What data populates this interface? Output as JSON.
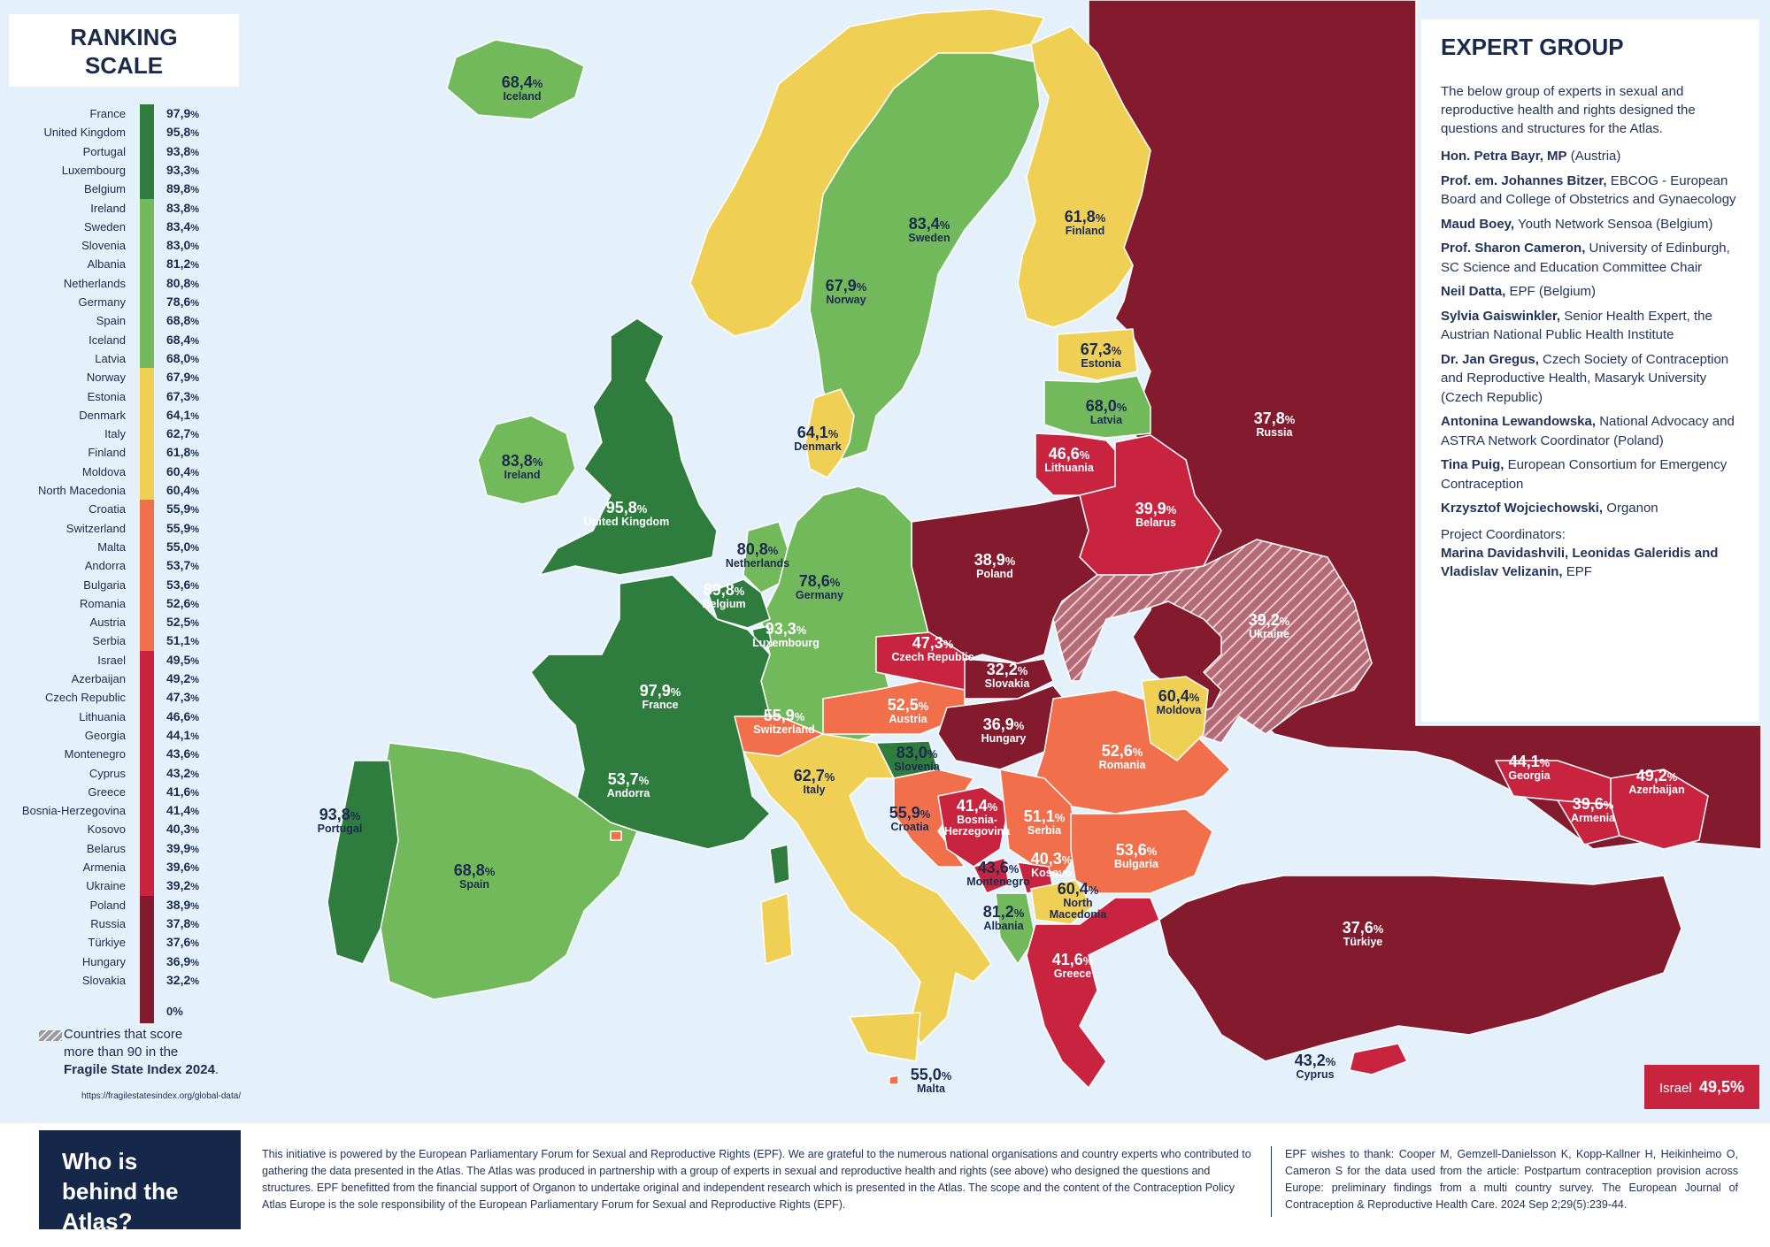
{
  "scale": {
    "title_line1": "RANKING",
    "title_line2": "SCALE",
    "zero_label": "0%",
    "entries": [
      {
        "country": "France",
        "value": "97,9"
      },
      {
        "country": "United Kingdom",
        "value": "95,8"
      },
      {
        "country": "Portugal",
        "value": "93,8"
      },
      {
        "country": "Luxembourg",
        "value": "93,3"
      },
      {
        "country": "Belgium",
        "value": "89,8"
      },
      {
        "country": "Ireland",
        "value": "83,8"
      },
      {
        "country": "Sweden",
        "value": "83,4"
      },
      {
        "country": "Slovenia",
        "value": "83,0"
      },
      {
        "country": "Albania",
        "value": "81,2"
      },
      {
        "country": "Netherlands",
        "value": "80,8"
      },
      {
        "country": "Germany",
        "value": "78,6"
      },
      {
        "country": "Spain",
        "value": "68,8"
      },
      {
        "country": "Iceland",
        "value": "68,4"
      },
      {
        "country": "Latvia",
        "value": "68,0"
      },
      {
        "country": "Norway",
        "value": "67,9"
      },
      {
        "country": "Estonia",
        "value": "67,3"
      },
      {
        "country": "Denmark",
        "value": "64,1"
      },
      {
        "country": "Italy",
        "value": "62,7"
      },
      {
        "country": "Finland",
        "value": "61,8"
      },
      {
        "country": "Moldova",
        "value": "60,4"
      },
      {
        "country": "North Macedonia",
        "value": "60,4"
      },
      {
        "country": "Croatia",
        "value": "55,9"
      },
      {
        "country": "Switzerland",
        "value": "55,9"
      },
      {
        "country": "Malta",
        "value": "55,0"
      },
      {
        "country": "Andorra",
        "value": "53,7"
      },
      {
        "country": "Bulgaria",
        "value": "53,6"
      },
      {
        "country": "Romania",
        "value": "52,6"
      },
      {
        "country": "Austria",
        "value": "52,5"
      },
      {
        "country": "Serbia",
        "value": "51,1"
      },
      {
        "country": "Israel",
        "value": "49,5"
      },
      {
        "country": "Azerbaijan",
        "value": "49,2"
      },
      {
        "country": "Czech Republic",
        "value": "47,3"
      },
      {
        "country": "Lithuania",
        "value": "46,6"
      },
      {
        "country": "Georgia",
        "value": "44,1"
      },
      {
        "country": "Montenegro",
        "value": "43,6"
      },
      {
        "country": "Cyprus",
        "value": "43,2"
      },
      {
        "country": "Greece",
        "value": "41,6"
      },
      {
        "country": "Bosnia-Herzegovina",
        "value": "41,4"
      },
      {
        "country": "Kosovo",
        "value": "40,3"
      },
      {
        "country": "Belarus",
        "value": "39,9"
      },
      {
        "country": "Armenia",
        "value": "39,6"
      },
      {
        "country": "Ukraine",
        "value": "39,2"
      },
      {
        "country": "Poland",
        "value": "38,9"
      },
      {
        "country": "Russia",
        "value": "37,8"
      },
      {
        "country": "Türkiye",
        "value": "37,6"
      },
      {
        "country": "Hungary",
        "value": "36,9"
      },
      {
        "country": "Slovakia",
        "value": "32,2"
      }
    ],
    "colors": {
      "dark_green": "#2e7d3e",
      "light_green": "#72b95c",
      "yellow": "#f0cf55",
      "orange": "#f1704b",
      "red": "#c8243f",
      "dark_red": "#841a2e"
    }
  },
  "legend": {
    "line1": "Countries that score",
    "line2": "more than 90 in the",
    "line3_bold": "Fragile State Index 2024",
    "line3_end": ".",
    "url": "https://fragilestatesindex.org/global-data/"
  },
  "map_labels": {
    "iceland": {
      "value": "68,4",
      "name": "Iceland"
    },
    "ireland": {
      "value": "83,8",
      "name": "Ireland"
    },
    "uk": {
      "value": "95,8",
      "name": "United Kingdom"
    },
    "portugal": {
      "value": "93,8",
      "name": "Portugal"
    },
    "spain": {
      "value": "68,8",
      "name": "Spain"
    },
    "andorra": {
      "value": "53,7",
      "name": "Andorra"
    },
    "france": {
      "value": "97,9",
      "name": "France"
    },
    "belgium": {
      "value": "89,8",
      "name": "Belgium"
    },
    "netherlands": {
      "value": "80,8",
      "name": "Netherlands"
    },
    "luxembourg": {
      "value": "93,3",
      "name": "Luxembourg"
    },
    "germany": {
      "value": "78,6",
      "name": "Germany"
    },
    "switzerland": {
      "value": "55,9",
      "name": "Switzerland"
    },
    "italy": {
      "value": "62,7",
      "name": "Italy"
    },
    "malta": {
      "value": "55,0",
      "name": "Malta"
    },
    "norway": {
      "value": "67,9",
      "name": "Norway"
    },
    "sweden": {
      "value": "83,4",
      "name": "Sweden"
    },
    "finland": {
      "value": "61,8",
      "name": "Finland"
    },
    "denmark": {
      "value": "64,1",
      "name": "Denmark"
    },
    "estonia": {
      "value": "67,3",
      "name": "Estonia"
    },
    "latvia": {
      "value": "68,0",
      "name": "Latvia"
    },
    "lithuania": {
      "value": "46,6",
      "name": "Lithuania"
    },
    "belarus": {
      "value": "39,9",
      "name": "Belarus"
    },
    "poland": {
      "value": "38,9",
      "name": "Poland"
    },
    "czech": {
      "value": "47,3",
      "name": "Czech Republic"
    },
    "slovakia": {
      "value": "32,2",
      "name": "Slovakia"
    },
    "austria": {
      "value": "52,5",
      "name": "Austria"
    },
    "hungary": {
      "value": "36,9",
      "name": "Hungary"
    },
    "slovenia": {
      "value": "83,0",
      "name": "Slovenia"
    },
    "croatia": {
      "value": "55,9",
      "name": "Croatia"
    },
    "bosnia": {
      "value": "41,4",
      "name_line1": "Bosnia-",
      "name_line2": "Herzegovina"
    },
    "serbia": {
      "value": "51,1",
      "name": "Serbia"
    },
    "montenegro": {
      "value": "43,6",
      "name": "Montenegro"
    },
    "kosovo": {
      "value": "40,3",
      "name": "Kosovo"
    },
    "albania": {
      "value": "81,2",
      "name": "Albania"
    },
    "north_macedonia": {
      "value": "60,4",
      "name_line1": "North",
      "name_line2": "Macedonia"
    },
    "greece": {
      "value": "41,6",
      "name": "Greece"
    },
    "bulgaria": {
      "value": "53,6",
      "name": "Bulgaria"
    },
    "romania": {
      "value": "52,6",
      "name": "Romania"
    },
    "moldova": {
      "value": "60,4",
      "name": "Moldova"
    },
    "ukraine": {
      "value": "39,2",
      "name": "Ukraine"
    },
    "russia": {
      "value": "37,8",
      "name": "Russia"
    },
    "turkiye": {
      "value": "37,6",
      "name": "Türkiye"
    },
    "cyprus": {
      "value": "43,2",
      "name": "Cyprus"
    },
    "georgia": {
      "value": "44,1",
      "name": "Georgia"
    },
    "armenia": {
      "value": "39,6",
      "name": "Armenia"
    },
    "azerbaijan": {
      "value": "49,2",
      "name": "Azerbaijan"
    },
    "pct_sign": "%"
  },
  "israel_box": {
    "name": "Israel",
    "value": "49,5%"
  },
  "expert_group": {
    "title": "EXPERT GROUP",
    "intro": "The below group of experts in sexual and reproductive health and rights designed the questions and structures for the Atlas.",
    "members": [
      {
        "name": "Hon. Petra Bayr, MP",
        "detail": " (Austria)"
      },
      {
        "name": "Prof. em. Johannes Bitzer,",
        "detail": " EBCOG - European Board and College of Obstetrics and Gynaecology"
      },
      {
        "name": "Maud Boey,",
        "detail": " Youth Network Sensoa (Belgium)"
      },
      {
        "name": "Prof. Sharon Cameron,",
        "detail": " University of Edinburgh, SC Science and Education Committee Chair"
      },
      {
        "name": "Neil Datta,",
        "detail": " EPF (Belgium)"
      },
      {
        "name": "Sylvia Gaiswinkler,",
        "detail": " Senior Health Expert, the Austrian National Public Health Institute"
      },
      {
        "name": "Dr. Jan Gregus,",
        "detail": " Czech Society of Contraception and Reproductive Health, Masaryk University (Czech Republic)"
      },
      {
        "name": "Antonina Lewandowska,",
        "detail": " National Advocacy and ASTRA Network Coordinator (Poland)"
      },
      {
        "name": "Tina Puig,",
        "detail": " European Consortium for Emergency Contraception"
      },
      {
        "name": "Krzysztof Wojciechowski,",
        "detail": "  Organon"
      }
    ],
    "coordinators_label": "Project Coordinators:",
    "coordinators_names": "Marina Davidashvili, Leonidas Galeridis and Vladislav Velizanin,",
    "coordinators_org": " EPF"
  },
  "bottom": {
    "who_title": "Who is behind the Atlas?",
    "about_text": "This initiative is powered by the European Parliamentary Forum for Sexual and Reproductive Rights (EPF). We are grateful to the numerous national organisations and country experts who contributed to gathering the data presented in the Atlas. The Atlas was produced in partnership with a group of experts in sexual and reproductive health and rights (see above) who designed the questions and structures. EPF benefitted from the financial support of Organon to undertake original and independent research which is presented in the Atlas. The scope and the content of the Contraception Policy Atlas Europe is the sole responsibility of the European Parliamentary Forum for Sexual and Reproductive Rights (EPF).",
    "thanks_text": "EPF wishes to thank: Cooper M, Gemzell-Danielsson K, Kopp-Kallner H, Heikinheimo O, Cameron S for the data used from the article: Postpartum contraception provision across Europe: preliminary findings from a multi country survey. The European Journal of Contraception & Reproductive Health Care. 2024 Sep 2;29(5):239-44."
  }
}
